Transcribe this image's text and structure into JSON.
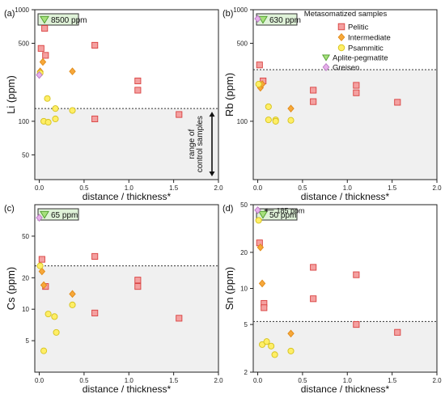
{
  "chart_data": [
    {
      "type": "scatter",
      "panel_label": "(a)",
      "ylabel": "Li (ppm)",
      "xlabel": "distance / thickness*",
      "y_scale": "log",
      "xlim": [
        -0.05,
        2.0
      ],
      "ylim": [
        30,
        1000
      ],
      "x_ticks": [
        "0.0",
        "0.5",
        "1.0",
        "1.5",
        "2.0"
      ],
      "y_ticks": [
        {
          "v": 50,
          "label": "50"
        },
        {
          "v": 100,
          "label": "100"
        },
        {
          "v": 500,
          "label": "500"
        },
        {
          "v": 1000,
          "label": "1000"
        }
      ],
      "background_threshold": 130,
      "offscale_label": "8500 ppm",
      "offscale_series": "Aplite-pegmatite",
      "range_annotation": "range of\ncontrol samples",
      "series": [
        {
          "name": "Pelitic",
          "points": [
            [
              0.02,
              450
            ],
            [
              0.06,
              680
            ],
            [
              0.07,
              390
            ],
            [
              0.62,
              480
            ],
            [
              0.62,
              105
            ],
            [
              1.1,
              230
            ],
            [
              1.1,
              190
            ],
            [
              1.56,
              115
            ]
          ]
        },
        {
          "name": "Intermediate",
          "points": [
            [
              0.01,
              280
            ],
            [
              0.04,
              340
            ],
            [
              0.37,
              280
            ]
          ]
        },
        {
          "name": "Psammitic",
          "points": [
            [
              0.01,
              270
            ],
            [
              0.05,
              100
            ],
            [
              0.09,
              160
            ],
            [
              0.1,
              98
            ],
            [
              0.18,
              130
            ],
            [
              0.18,
              105
            ],
            [
              0.37,
              125
            ]
          ]
        },
        {
          "name": "Greisen",
          "points": [
            [
              0.0,
              260
            ]
          ]
        }
      ]
    },
    {
      "type": "scatter",
      "panel_label": "(b)",
      "ylabel": "Rb (ppm)",
      "xlabel": "distance / thickness*",
      "y_scale": "log",
      "xlim": [
        -0.05,
        2.0
      ],
      "ylim": [
        30,
        1000
      ],
      "x_ticks": [
        "0.0",
        "0.5",
        "1.0",
        "1.5",
        "2.0"
      ],
      "y_ticks": [
        {
          "v": 100,
          "label": "100"
        },
        {
          "v": 500,
          "label": "500"
        },
        {
          "v": 1000,
          "label": "1000"
        }
      ],
      "background_threshold": 290,
      "offscale_label": "630 ppm",
      "offscale_series": "Aplite-pegmatite",
      "series": [
        {
          "name": "Pelitic",
          "points": [
            [
              0.02,
              320
            ],
            [
              0.06,
              230
            ],
            [
              0.62,
              190
            ],
            [
              0.62,
              150
            ],
            [
              1.1,
              210
            ],
            [
              1.1,
              180
            ],
            [
              1.56,
              148
            ]
          ]
        },
        {
          "name": "Intermediate",
          "points": [
            [
              0.03,
              200
            ],
            [
              0.05,
              215
            ],
            [
              0.37,
              130
            ]
          ]
        },
        {
          "name": "Psammitic",
          "points": [
            [
              0.01,
              215
            ],
            [
              0.12,
              135
            ],
            [
              0.12,
              103
            ],
            [
              0.2,
              103
            ],
            [
              0.2,
              100
            ],
            [
              0.37,
              102
            ]
          ]
        },
        {
          "name": "Greisen",
          "points": [
            [
              0.0,
              830
            ]
          ]
        }
      ]
    },
    {
      "type": "scatter",
      "panel_label": "(c)",
      "ylabel": "Cs (ppm)",
      "xlabel": "distance / thickness*",
      "y_scale": "log",
      "xlim": [
        -0.05,
        2.0
      ],
      "ylim": [
        2.5,
        100
      ],
      "x_ticks": [
        "0.0",
        "0.5",
        "1.0",
        "1.5",
        "2.0"
      ],
      "y_ticks": [
        {
          "v": 5,
          "label": "5"
        },
        {
          "v": 10,
          "label": "10"
        },
        {
          "v": 20,
          "label": "20"
        },
        {
          "v": 50,
          "label": "50"
        }
      ],
      "background_threshold": 26,
      "offscale_label": "65 ppm",
      "offscale_series": "Aplite-pegmatite",
      "series": [
        {
          "name": "Pelitic",
          "points": [
            [
              0.03,
              30
            ],
            [
              0.07,
              16.5
            ],
            [
              0.62,
              32
            ],
            [
              0.62,
              9.2
            ],
            [
              1.1,
              19
            ],
            [
              1.1,
              16.5
            ],
            [
              1.56,
              8.2
            ]
          ]
        },
        {
          "name": "Intermediate",
          "points": [
            [
              0.03,
              23
            ],
            [
              0.05,
              17
            ],
            [
              0.37,
              14
            ]
          ]
        },
        {
          "name": "Psammitic",
          "points": [
            [
              0.01,
              26
            ],
            [
              0.05,
              4.0
            ],
            [
              0.1,
              9.0
            ],
            [
              0.17,
              8.5
            ],
            [
              0.19,
              6.0
            ],
            [
              0.37,
              11
            ]
          ]
        },
        {
          "name": "Greisen",
          "points": [
            [
              0.0,
              75
            ]
          ]
        }
      ]
    },
    {
      "type": "scatter",
      "panel_label": "(d)",
      "ylabel": "Sn (ppm)",
      "xlabel": "distance / thickness*",
      "y_scale": "log",
      "xlim": [
        -0.05,
        2.0
      ],
      "ylim": [
        2,
        50
      ],
      "x_ticks": [
        "0.0",
        "0.5",
        "1.0",
        "1.5",
        "2.0"
      ],
      "y_ticks": [
        {
          "v": 2,
          "label": "2"
        },
        {
          "v": 5,
          "label": "5"
        },
        {
          "v": 10,
          "label": "10"
        },
        {
          "v": 20,
          "label": "20"
        },
        {
          "v": 50,
          "label": "50"
        }
      ],
      "background_threshold": 5.3,
      "offscale_label": "50 ppm",
      "offscale_series": "Aplite-pegmatite",
      "greisen_label": "185 ppm",
      "series": [
        {
          "name": "Pelitic",
          "points": [
            [
              0.02,
              24
            ],
            [
              0.07,
              7.5
            ],
            [
              0.07,
              6.9
            ],
            [
              0.62,
              15
            ],
            [
              0.62,
              8.2
            ],
            [
              1.1,
              13
            ],
            [
              1.1,
              5.0
            ],
            [
              1.56,
              4.3
            ]
          ]
        },
        {
          "name": "Intermediate",
          "points": [
            [
              0.03,
              22
            ],
            [
              0.05,
              11
            ],
            [
              0.37,
              4.2
            ]
          ]
        },
        {
          "name": "Psammitic",
          "points": [
            [
              0.01,
              37
            ],
            [
              0.05,
              3.4
            ],
            [
              0.1,
              3.6
            ],
            [
              0.15,
              3.3
            ],
            [
              0.19,
              2.8
            ],
            [
              0.37,
              3.0
            ]
          ]
        },
        {
          "name": "Greisen",
          "points": [
            [
              0.0,
              45
            ]
          ]
        }
      ]
    }
  ],
  "legend": {
    "title": "Metasomatized samples",
    "items": [
      {
        "name": "Pelitic",
        "marker": "square",
        "fill": "#f4a0a0",
        "stroke": "#d9403f"
      },
      {
        "name": "Intermediate",
        "marker": "diamond",
        "fill": "#f7a83a",
        "stroke": "#e08a18"
      },
      {
        "name": "Psammitic",
        "marker": "circle",
        "fill": "#ffee66",
        "stroke": "#d4c21c"
      },
      {
        "name": "Aplite-pegmatite",
        "marker": "triangle-down",
        "fill": "#a6e07c",
        "stroke": "#4c9a2a"
      },
      {
        "name": "Greisen",
        "marker": "diamond",
        "fill": "#e6b0ea",
        "stroke": "#b878c2"
      }
    ]
  },
  "colors": {
    "background_box": "#f0f0f0",
    "offscale_box_fill": "#dff2d8",
    "offscale_box_stroke": "#333333"
  }
}
